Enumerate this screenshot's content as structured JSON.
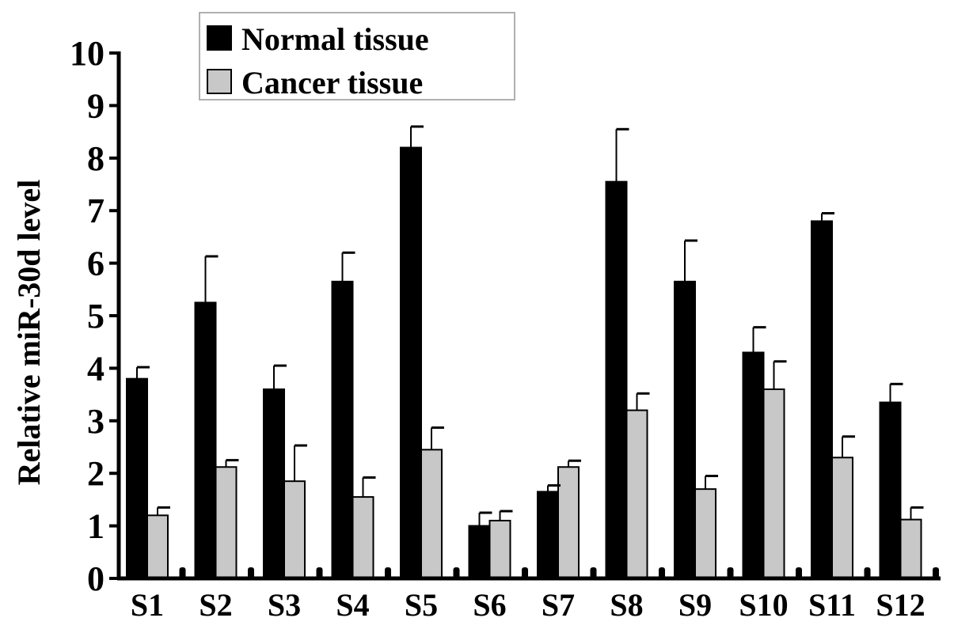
{
  "chart_data": {
    "type": "bar",
    "ylabel": "Relative miR-30d level",
    "xlabel": "",
    "ylim": [
      0,
      10
    ],
    "yticks": [
      "0",
      "1",
      "2",
      "3",
      "4",
      "5",
      "6",
      "7",
      "8",
      "9",
      "10"
    ],
    "categories": [
      "S1",
      "S2",
      "S3",
      "S4",
      "S5",
      "S6",
      "S7",
      "S8",
      "S9",
      "S10",
      "S11",
      "S12"
    ],
    "legend_position": "top-left",
    "grid": false,
    "series": [
      {
        "name": "Normal tissue",
        "color": "#000000",
        "values": [
          3.8,
          5.25,
          3.6,
          5.65,
          8.2,
          1.0,
          1.65,
          7.55,
          5.65,
          4.3,
          6.8,
          3.35
        ],
        "errors": [
          0.22,
          0.88,
          0.45,
          0.55,
          0.4,
          0.25,
          0.12,
          1.0,
          0.78,
          0.48,
          0.15,
          0.35
        ]
      },
      {
        "name": "Cancer tissue",
        "color": "#c8c8c8",
        "values": [
          1.2,
          2.12,
          1.85,
          1.55,
          2.45,
          1.1,
          2.12,
          3.2,
          1.7,
          3.6,
          2.3,
          1.12
        ],
        "errors": [
          0.15,
          0.13,
          0.68,
          0.37,
          0.42,
          0.18,
          0.12,
          0.32,
          0.25,
          0.53,
          0.4,
          0.23
        ]
      }
    ]
  }
}
